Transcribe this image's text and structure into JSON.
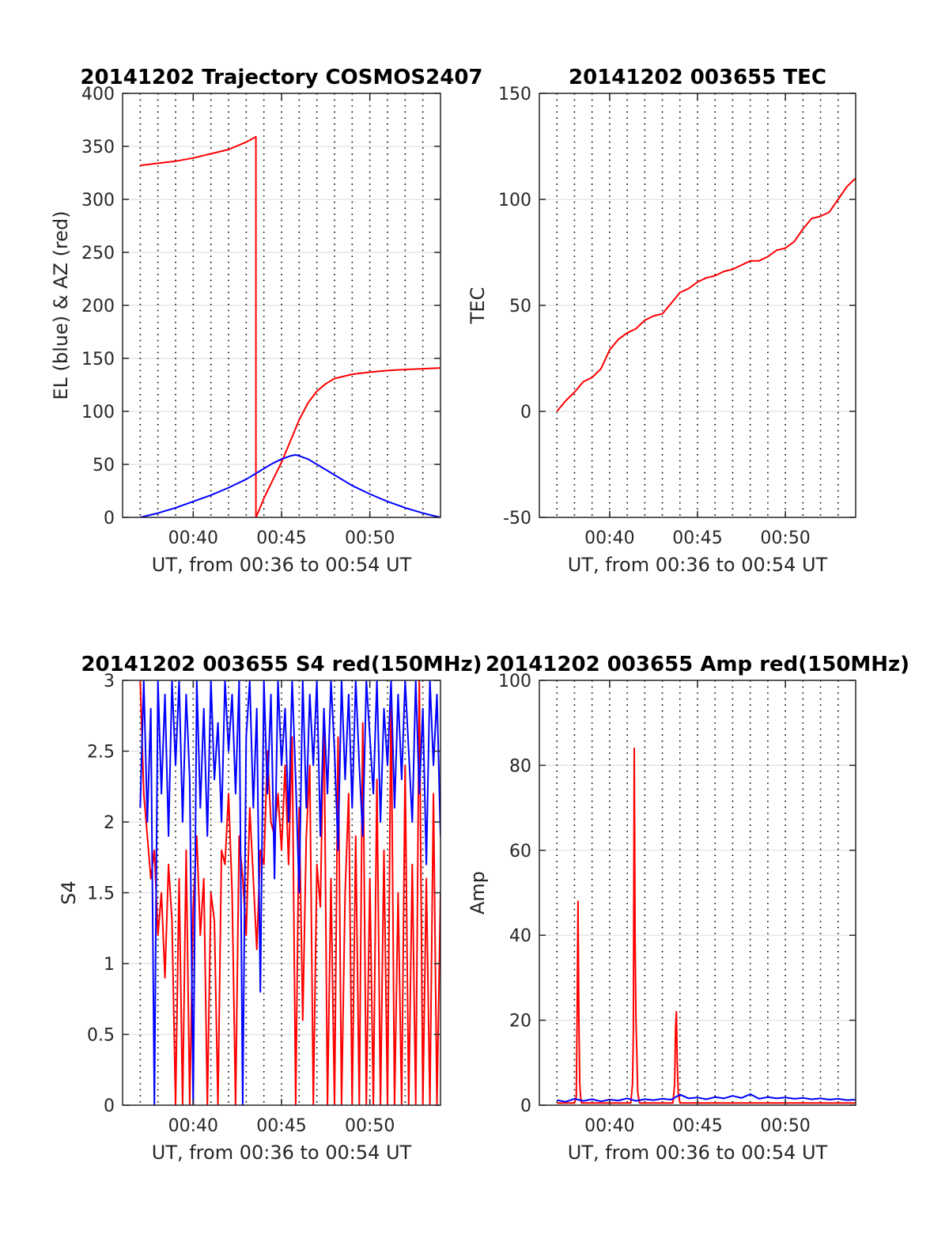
{
  "figure": {
    "colors": {
      "red": "#ff0000",
      "blue": "#0000ff",
      "grid_solid": "#e0e0e0",
      "grid_dotted": "#000000",
      "axis": "#262626"
    }
  },
  "chart_data": [
    {
      "type": "line",
      "title": "20141202 Trajectory COSMOS2407",
      "xlabel": "UT, from 00:36 to 00:54 UT",
      "ylabel": "EL (blue) & AZ (red)",
      "xlim": [
        36,
        54
      ],
      "x_start": 37,
      "ylim": [
        0,
        400
      ],
      "yticks": [
        0,
        50,
        100,
        150,
        200,
        250,
        300,
        350,
        400
      ],
      "xticks": [
        40,
        45,
        50
      ],
      "xtick_labels": [
        "00:40",
        "00:45",
        "00:50"
      ],
      "grid": true,
      "series": [
        {
          "color": "#ff0000",
          "x": [
            37,
            38,
            39,
            40,
            41,
            42,
            43,
            43.55,
            43.55,
            43.56,
            44,
            44.5,
            45,
            45.5,
            46,
            46.5,
            47,
            47.5,
            48,
            49,
            50,
            51,
            52,
            53,
            54
          ],
          "values": [
            332,
            334,
            336,
            339,
            343,
            347,
            354,
            359,
            0,
            0,
            18,
            35,
            52,
            72,
            92,
            108,
            119,
            126,
            131,
            135,
            137,
            138.5,
            139.5,
            140.2,
            141
          ]
        },
        {
          "color": "#0000ff",
          "x": [
            37,
            38,
            39,
            40,
            41,
            42,
            43,
            44,
            44.5,
            45,
            45.5,
            45.8,
            46,
            46.5,
            47,
            48,
            49,
            50,
            51,
            52,
            53,
            54
          ],
          "values": [
            0,
            4,
            9,
            15,
            21,
            28,
            36,
            46,
            51,
            55,
            58,
            59,
            58,
            55,
            50,
            40,
            30,
            22,
            15,
            9,
            4,
            0
          ]
        }
      ]
    },
    {
      "type": "line",
      "title": "20141202 003655 TEC",
      "xlabel": "UT, from 00:36 to 00:54 UT",
      "ylabel": "TEC",
      "xlim": [
        36,
        54
      ],
      "ylim": [
        -50,
        150
      ],
      "yticks": [
        -50,
        0,
        50,
        100,
        150
      ],
      "xticks": [
        40,
        45,
        50
      ],
      "xtick_labels": [
        "00:40",
        "00:45",
        "00:50"
      ],
      "grid": true,
      "series": [
        {
          "color": "#ff0000",
          "x": [
            37,
            37.5,
            38,
            38.5,
            39,
            39.5,
            40,
            40.5,
            41,
            41.5,
            42,
            42.5,
            43,
            43.5,
            44,
            44.5,
            45,
            45.5,
            46,
            46.5,
            47,
            47.5,
            48,
            48.5,
            49,
            49.5,
            50,
            50.5,
            51,
            51.5,
            52,
            52.5,
            53,
            53.5,
            54
          ],
          "values": [
            0,
            5,
            9,
            14,
            16,
            20,
            29,
            34,
            37,
            39,
            43,
            45,
            46,
            51,
            56,
            58,
            61,
            63,
            64,
            66,
            67,
            69,
            71,
            71,
            73,
            76,
            77,
            80,
            86,
            91,
            92,
            94,
            100,
            106,
            110
          ]
        }
      ]
    },
    {
      "type": "line",
      "title": "20141202 003655 S4 red(150MHz)",
      "xlabel": "UT, from 00:36 to 00:54 UT",
      "ylabel": "S4",
      "xlim": [
        36,
        54
      ],
      "ylim": [
        0,
        3
      ],
      "yticks": [
        0,
        0.5,
        1,
        1.5,
        2,
        2.5,
        3
      ],
      "ytick_labels": [
        "0",
        "0.5",
        "1",
        "1.5",
        "2",
        "2.5",
        "3"
      ],
      "xticks": [
        40,
        45,
        50
      ],
      "xtick_labels": [
        "00:40",
        "00:45",
        "00:50"
      ],
      "grid": true,
      "series": [
        {
          "color": "#ff0000",
          "x": [
            37,
            37.2,
            37.4,
            37.6,
            37.8,
            38,
            38.2,
            38.4,
            38.6,
            38.8,
            39,
            39.2,
            39.4,
            39.6,
            39.8,
            40,
            40.2,
            40.4,
            40.6,
            40.8,
            41,
            41.2,
            41.4,
            41.6,
            41.8,
            42,
            42.2,
            42.4,
            42.6,
            42.8,
            43,
            43.2,
            43.4,
            43.6,
            43.8,
            44,
            44.2,
            44.4,
            44.6,
            44.8,
            45,
            45.2,
            45.4,
            45.6,
            45.8,
            46,
            46.2,
            46.4,
            46.6,
            46.8,
            47,
            47.2,
            47.4,
            47.6,
            47.8,
            48,
            48.2,
            48.4,
            48.6,
            48.8,
            49,
            49.2,
            49.4,
            49.6,
            49.8,
            50,
            50.2,
            50.4,
            50.6,
            50.8,
            51,
            51.2,
            51.4,
            51.6,
            51.8,
            52,
            52.2,
            52.4,
            52.6,
            52.8,
            53,
            53.2,
            53.4,
            53.6,
            53.8,
            54
          ],
          "values": [
            3,
            2.2,
            1.9,
            1.6,
            1.8,
            1.2,
            1.5,
            0.9,
            1.7,
            1.3,
            0,
            1.6,
            0,
            1.8,
            0,
            1.4,
            1.9,
            1.2,
            1.6,
            0,
            1.5,
            1.3,
            0,
            1.8,
            1.7,
            2.2,
            1.5,
            0,
            1.9,
            1.6,
            1.2,
            2.1,
            1.6,
            1.1,
            1.8,
            1.7,
            2.5,
            2.0,
            1.9,
            2.2,
            1.8,
            2.4,
            1.7,
            2.6,
            0,
            2.1,
            0.6,
            1.9,
            2.4,
            0,
            1.7,
            1.4,
            2.8,
            0,
            1.6,
            0,
            2.6,
            0,
            1.5,
            2.2,
            0,
            1.9,
            0,
            2.7,
            0,
            1.6,
            0,
            2.3,
            0,
            1.8,
            0,
            2.9,
            0,
            1.5,
            0,
            2.4,
            0,
            1.7,
            0,
            3,
            0,
            1.6,
            0,
            2.2,
            0,
            1.5
          ]
        },
        {
          "color": "#0000ff",
          "x": [
            37,
            37.2,
            37.4,
            37.6,
            37.8,
            38,
            38.2,
            38.4,
            38.6,
            38.8,
            39,
            39.2,
            39.4,
            39.6,
            39.8,
            40,
            40.2,
            40.4,
            40.6,
            40.8,
            41,
            41.2,
            41.4,
            41.6,
            41.8,
            42,
            42.2,
            42.4,
            42.6,
            42.8,
            43,
            43.2,
            43.4,
            43.6,
            43.8,
            44,
            44.2,
            44.4,
            44.6,
            44.8,
            45,
            45.2,
            45.4,
            45.6,
            45.8,
            46,
            46.2,
            46.4,
            46.6,
            46.8,
            47,
            47.2,
            47.4,
            47.6,
            47.8,
            48,
            48.2,
            48.4,
            48.6,
            48.8,
            49,
            49.2,
            49.4,
            49.6,
            49.8,
            50,
            50.2,
            50.4,
            50.6,
            50.8,
            51,
            51.2,
            51.4,
            51.6,
            51.8,
            52,
            52.2,
            52.4,
            52.6,
            52.8,
            53,
            53.2,
            53.4,
            53.6,
            53.8,
            54
          ],
          "values": [
            2.1,
            3,
            2.0,
            2.8,
            0,
            3,
            2.2,
            2.9,
            1.9,
            3,
            2.4,
            3,
            2.0,
            2.9,
            2.3,
            0,
            3,
            2.1,
            2.8,
            1.9,
            3,
            2.3,
            2.7,
            2.0,
            3,
            2.5,
            2.9,
            2.2,
            3,
            0,
            2.6,
            3,
            2.1,
            2.8,
            0.8,
            3,
            2.2,
            2.9,
            1.6,
            3,
            2.4,
            2.8,
            2.0,
            3,
            2.3,
            1.5,
            3,
            2.1,
            2.9,
            2.4,
            3,
            1.9,
            2.8,
            2.2,
            3,
            2.5,
            1.8,
            3,
            2.3,
            2.9,
            2.1,
            3,
            2.4,
            1.9,
            3,
            2.6,
            2.2,
            3,
            2.0,
            2.8,
            2.4,
            3,
            2.1,
            2.9,
            2.3,
            3,
            2.5,
            2.0,
            3,
            2.2,
            2.8,
            1.7,
            3,
            2.4,
            2.9,
            1.9
          ]
        }
      ]
    },
    {
      "type": "line",
      "title": "20141202 003655 Amp red(150MHz)",
      "xlabel": "UT, from 00:36 to 00:54 UT",
      "ylabel": "Amp",
      "xlim": [
        36,
        54
      ],
      "ylim": [
        0,
        100
      ],
      "yticks": [
        0,
        20,
        40,
        60,
        80,
        100
      ],
      "xticks": [
        40,
        45,
        50
      ],
      "xtick_labels": [
        "00:40",
        "00:45",
        "00:50"
      ],
      "grid": true,
      "series": [
        {
          "color": "#ff0000",
          "x": [
            37,
            38.0,
            38.1,
            38.15,
            38.2,
            38.25,
            38.3,
            38.35,
            38.4,
            38.6,
            41.2,
            41.3,
            41.35,
            41.4,
            41.45,
            41.5,
            41.55,
            41.6,
            41.7,
            41.8,
            43.6,
            43.7,
            43.75,
            43.8,
            43.85,
            43.9,
            44.0,
            54
          ],
          "values": [
            0.5,
            0.5,
            2,
            22,
            48,
            20,
            5,
            2,
            0.5,
            0.5,
            0.5,
            5,
            18,
            84,
            38,
            20,
            12,
            3,
            0.5,
            0.5,
            0.5,
            5,
            18,
            22,
            10,
            3,
            0.5,
            0.5
          ]
        },
        {
          "color": "#0000ff",
          "x": [
            37,
            37.5,
            38,
            38.5,
            39,
            39.5,
            40,
            40.5,
            41,
            41.5,
            42,
            42.5,
            43,
            43.5,
            44,
            44.5,
            45,
            45.5,
            46,
            46.5,
            47,
            47.5,
            48,
            48.5,
            49,
            49.5,
            50,
            50.5,
            51,
            51.5,
            52,
            52.5,
            53,
            53.5,
            54
          ],
          "values": [
            1.2,
            0.8,
            1.5,
            1.0,
            1.4,
            0.9,
            1.3,
            1.1,
            1.6,
            1.0,
            1.4,
            1.2,
            1.5,
            1.3,
            2.5,
            1.6,
            1.8,
            1.4,
            1.9,
            1.6,
            2.2,
            1.7,
            2.6,
            1.5,
            1.9,
            1.6,
            1.8,
            1.5,
            1.7,
            1.4,
            1.6,
            1.3,
            1.5,
            1.2,
            1.3
          ]
        }
      ]
    }
  ]
}
